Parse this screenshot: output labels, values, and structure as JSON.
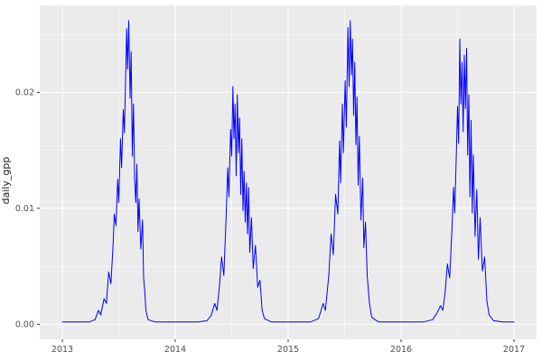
{
  "chart_data": {
    "type": "line",
    "title": "",
    "xlabel": "",
    "ylabel": "daily_gpp",
    "legend": null,
    "grid": true,
    "panel_bg": "#ebebeb",
    "grid_color": "#ffffff",
    "line_color": "#0000ff",
    "tick_label_color": "#4d4d4d",
    "tick_mark_color": "#333333",
    "xlim": [
      2012.8,
      2017.2
    ],
    "ylim": [
      -0.0013,
      0.0275
    ],
    "x_ticks": [
      2013,
      2014,
      2015,
      2016,
      2017
    ],
    "x_tick_labels": [
      "2013",
      "2014",
      "2015",
      "2016",
      "2017"
    ],
    "y_ticks": [
      0,
      0.01,
      0.02
    ],
    "y_tick_labels": [
      "0.00",
      "0.01",
      "0.02"
    ],
    "x_minor": [
      2013.5,
      2014.5,
      2015.5,
      2016.5
    ],
    "y_minor": [
      0.005,
      0.015,
      0.025
    ],
    "series": [
      {
        "name": "daily_gpp",
        "points": [
          [
            2013.0,
            0.0002
          ],
          [
            2013.08,
            0.0002
          ],
          [
            2013.16,
            0.0002
          ],
          [
            2013.24,
            0.0002
          ],
          [
            2013.29,
            0.0004
          ],
          [
            2013.32,
            0.0012
          ],
          [
            2013.34,
            0.0008
          ],
          [
            2013.37,
            0.0022
          ],
          [
            2013.39,
            0.0018
          ],
          [
            2013.41,
            0.0045
          ],
          [
            2013.43,
            0.0035
          ],
          [
            2013.45,
            0.007
          ],
          [
            2013.46,
            0.0095
          ],
          [
            2013.475,
            0.0085
          ],
          [
            2013.49,
            0.0125
          ],
          [
            2013.5,
            0.0105
          ],
          [
            2013.515,
            0.016
          ],
          [
            2013.525,
            0.0135
          ],
          [
            2013.54,
            0.0185
          ],
          [
            2013.55,
            0.0165
          ],
          [
            2013.56,
            0.021
          ],
          [
            2013.57,
            0.0255
          ],
          [
            2013.578,
            0.022
          ],
          [
            2013.588,
            0.0262
          ],
          [
            2013.6,
            0.0195
          ],
          [
            2013.61,
            0.0235
          ],
          [
            2013.62,
            0.0145
          ],
          [
            2013.63,
            0.019
          ],
          [
            2013.64,
            0.0125
          ],
          [
            2013.65,
            0.0105
          ],
          [
            2013.66,
            0.0138
          ],
          [
            2013.67,
            0.008
          ],
          [
            2013.68,
            0.0108
          ],
          [
            2013.695,
            0.0065
          ],
          [
            2013.71,
            0.009
          ],
          [
            2013.72,
            0.004
          ],
          [
            2013.73,
            0.0028
          ],
          [
            2013.74,
            0.0012
          ],
          [
            2013.76,
            0.0004
          ],
          [
            2013.82,
            0.0002
          ],
          [
            2013.92,
            0.0002
          ],
          [
            2014.0,
            0.0002
          ],
          [
            2014.1,
            0.0002
          ],
          [
            2014.2,
            0.0002
          ],
          [
            2014.28,
            0.0003
          ],
          [
            2014.32,
            0.0008
          ],
          [
            2014.35,
            0.0018
          ],
          [
            2014.37,
            0.0012
          ],
          [
            2014.39,
            0.0032
          ],
          [
            2014.41,
            0.0058
          ],
          [
            2014.43,
            0.0042
          ],
          [
            2014.45,
            0.0092
          ],
          [
            2014.465,
            0.0135
          ],
          [
            2014.475,
            0.011
          ],
          [
            2014.49,
            0.0168
          ],
          [
            2014.5,
            0.0145
          ],
          [
            2014.51,
            0.0205
          ],
          [
            2014.52,
            0.016
          ],
          [
            2014.53,
            0.019
          ],
          [
            2014.54,
            0.0128
          ],
          [
            2014.55,
            0.0198
          ],
          [
            2014.56,
            0.0148
          ],
          [
            2014.57,
            0.0178
          ],
          [
            2014.58,
            0.0112
          ],
          [
            2014.59,
            0.016
          ],
          [
            2014.6,
            0.0098
          ],
          [
            2014.61,
            0.0132
          ],
          [
            2014.62,
            0.0088
          ],
          [
            2014.63,
            0.0122
          ],
          [
            2014.64,
            0.0078
          ],
          [
            2014.65,
            0.0118
          ],
          [
            2014.66,
            0.0062
          ],
          [
            2014.675,
            0.0092
          ],
          [
            2014.69,
            0.0048
          ],
          [
            2014.71,
            0.0068
          ],
          [
            2014.73,
            0.0032
          ],
          [
            2014.75,
            0.0038
          ],
          [
            2014.77,
            0.0012
          ],
          [
            2014.79,
            0.0005
          ],
          [
            2014.85,
            0.0002
          ],
          [
            2014.93,
            0.0002
          ],
          [
            2015.0,
            0.0002
          ],
          [
            2015.1,
            0.0002
          ],
          [
            2015.2,
            0.0002
          ],
          [
            2015.27,
            0.0005
          ],
          [
            2015.31,
            0.0018
          ],
          [
            2015.33,
            0.0012
          ],
          [
            2015.36,
            0.0042
          ],
          [
            2015.38,
            0.0078
          ],
          [
            2015.4,
            0.006
          ],
          [
            2015.42,
            0.0112
          ],
          [
            2015.44,
            0.0095
          ],
          [
            2015.455,
            0.0158
          ],
          [
            2015.465,
            0.0122
          ],
          [
            2015.48,
            0.019
          ],
          [
            2015.49,
            0.0148
          ],
          [
            2015.505,
            0.021
          ],
          [
            2015.515,
            0.017
          ],
          [
            2015.53,
            0.0256
          ],
          [
            2015.54,
            0.0205
          ],
          [
            2015.55,
            0.0262
          ],
          [
            2015.56,
            0.0215
          ],
          [
            2015.57,
            0.0246
          ],
          [
            2015.58,
            0.018
          ],
          [
            2015.59,
            0.0226
          ],
          [
            2015.6,
            0.0155
          ],
          [
            2015.61,
            0.0196
          ],
          [
            2015.62,
            0.012
          ],
          [
            2015.63,
            0.0162
          ],
          [
            2015.645,
            0.009
          ],
          [
            2015.66,
            0.0126
          ],
          [
            2015.67,
            0.0066
          ],
          [
            2015.685,
            0.0088
          ],
          [
            2015.7,
            0.0042
          ],
          [
            2015.72,
            0.0018
          ],
          [
            2015.74,
            0.0006
          ],
          [
            2015.8,
            0.0002
          ],
          [
            2015.9,
            0.0002
          ],
          [
            2016.0,
            0.0002
          ],
          [
            2016.1,
            0.0002
          ],
          [
            2016.2,
            0.0002
          ],
          [
            2016.28,
            0.0004
          ],
          [
            2016.32,
            0.001
          ],
          [
            2016.35,
            0.0016
          ],
          [
            2016.37,
            0.0012
          ],
          [
            2016.39,
            0.0028
          ],
          [
            2016.41,
            0.0052
          ],
          [
            2016.43,
            0.004
          ],
          [
            2016.45,
            0.0082
          ],
          [
            2016.465,
            0.0118
          ],
          [
            2016.475,
            0.0096
          ],
          [
            2016.49,
            0.0148
          ],
          [
            2016.5,
            0.0188
          ],
          [
            2016.51,
            0.0156
          ],
          [
            2016.52,
            0.0246
          ],
          [
            2016.53,
            0.019
          ],
          [
            2016.54,
            0.0226
          ],
          [
            2016.55,
            0.0166
          ],
          [
            2016.56,
            0.0232
          ],
          [
            2016.57,
            0.0186
          ],
          [
            2016.58,
            0.0238
          ],
          [
            2016.59,
            0.0146
          ],
          [
            2016.6,
            0.0198
          ],
          [
            2016.61,
            0.011
          ],
          [
            2016.62,
            0.0176
          ],
          [
            2016.63,
            0.0096
          ],
          [
            2016.64,
            0.0146
          ],
          [
            2016.655,
            0.0076
          ],
          [
            2016.67,
            0.0116
          ],
          [
            2016.685,
            0.0056
          ],
          [
            2016.7,
            0.0092
          ],
          [
            2016.72,
            0.0046
          ],
          [
            2016.74,
            0.0058
          ],
          [
            2016.76,
            0.002
          ],
          [
            2016.78,
            0.0008
          ],
          [
            2016.82,
            0.0003
          ],
          [
            2016.9,
            0.0002
          ],
          [
            2017.0,
            0.0002
          ]
        ]
      }
    ]
  }
}
